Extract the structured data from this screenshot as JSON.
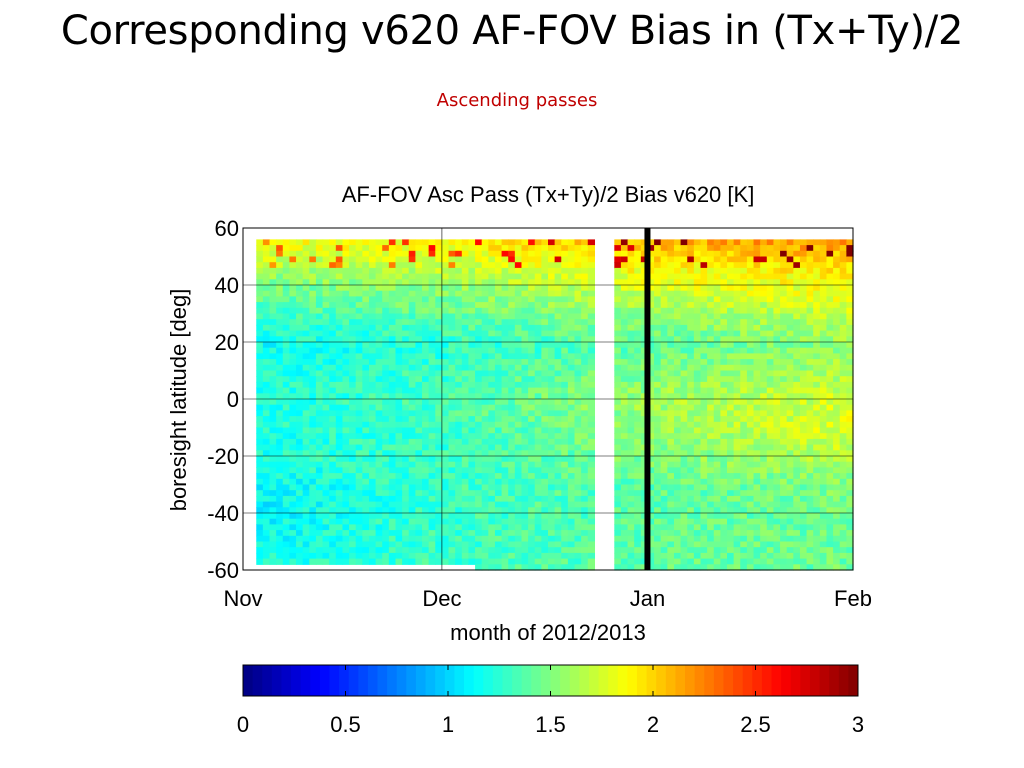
{
  "slide": {
    "title": "Corresponding v620 AF-FOV Bias in (Tx+Ty)/2",
    "subtitle": "Ascending passes"
  },
  "chart_data": {
    "type": "heatmap",
    "title": "AF-FOV Asc Pass (Tx+Ty)/2 Bias v620 [K]",
    "xlabel": "month of 2012/2013",
    "ylabel": "boresight latitude [deg]",
    "x_ticks": [
      "Nov",
      "Dec",
      "Jan",
      "Feb"
    ],
    "y_ticks": [
      60,
      40,
      20,
      0,
      -20,
      -40,
      -60
    ],
    "xlim": [
      "2012-11-01",
      "2013-02-01"
    ],
    "ylim": [
      -60,
      60
    ],
    "grid": true,
    "data_gaps": [
      [
        "2012-11-01",
        "2012-11-03"
      ],
      [
        "2012-12-24",
        "2012-12-27"
      ]
    ],
    "marker_line": {
      "date": "2013-01-01",
      "color": "#000000"
    },
    "latitude_coverage": {
      "max": 56,
      "min_start": -56,
      "min_end": -59
    },
    "bias_profile": {
      "latitudes": [
        56,
        50,
        40,
        30,
        20,
        10,
        0,
        -10,
        -20,
        -30,
        -40,
        -50,
        -56
      ],
      "Nov": [
        1.8,
        1.7,
        1.45,
        1.3,
        1.15,
        1.2,
        1.2,
        1.2,
        1.2,
        1.1,
        1.1,
        1.15,
        1.2
      ],
      "Dec": [
        1.9,
        1.75,
        1.55,
        1.4,
        1.25,
        1.3,
        1.35,
        1.3,
        1.3,
        1.3,
        1.3,
        1.3,
        1.3
      ],
      "Jan": [
        2.1,
        1.95,
        1.75,
        1.55,
        1.4,
        1.5,
        1.6,
        1.55,
        1.5,
        1.4,
        1.4,
        1.4,
        1.4
      ],
      "Feb": [
        2.2,
        2.0,
        1.85,
        1.7,
        1.55,
        1.65,
        1.75,
        1.8,
        1.65,
        1.5,
        1.45,
        1.45,
        1.45
      ]
    },
    "colorbar": {
      "min": 0,
      "max": 3,
      "ticks": [
        "0",
        "0.5",
        "1",
        "1.5",
        "2",
        "2.5",
        "3"
      ],
      "colormap": "jet"
    }
  }
}
